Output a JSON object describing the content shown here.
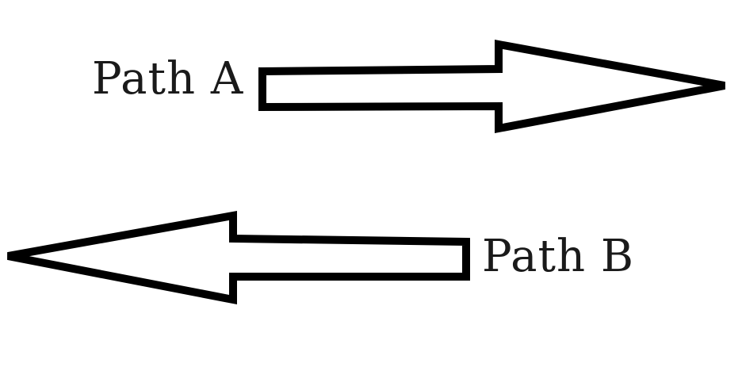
{
  "diagram": {
    "path_a": {
      "label": "Path A",
      "direction": "right"
    },
    "path_b": {
      "label": "Path B",
      "direction": "left"
    }
  },
  "colors": {
    "stroke": "#000000",
    "fill": "#ffffff",
    "text": "#1a1a1a"
  }
}
